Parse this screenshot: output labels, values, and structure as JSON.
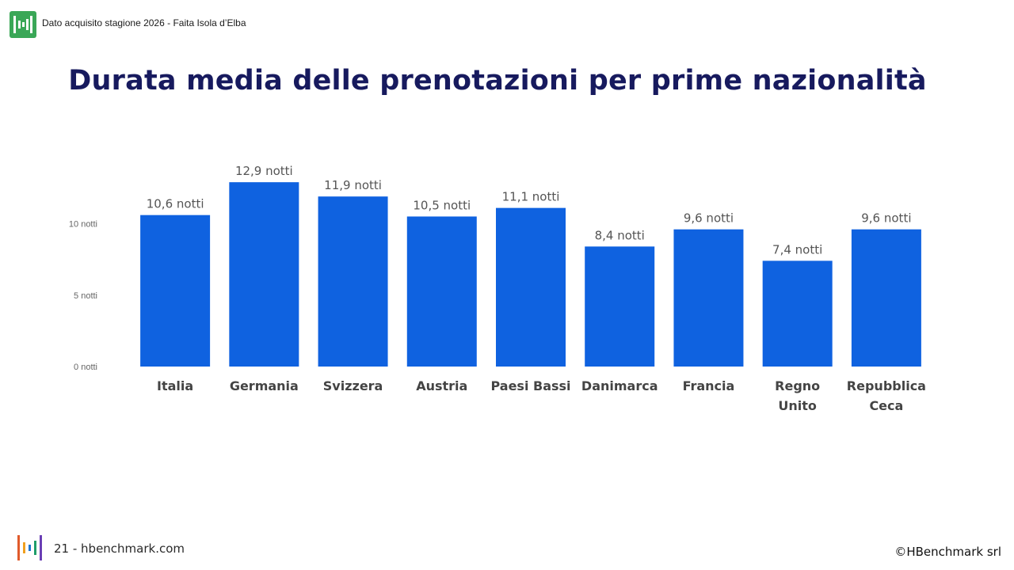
{
  "header": {
    "note": "Dato acquisito stagione 2026 - Faita Isola d’Elba"
  },
  "title": "Durata media delle prenotazioni per prime nazionalità",
  "colors": {
    "bar": "#0f62e0",
    "title": "#171a5e",
    "logo_top_bg": "#3aa757",
    "logo_bars": [
      "#e05a2b",
      "#f0a020",
      "#1f77d0",
      "#1f9e6a",
      "#6a3fb5"
    ]
  },
  "chart_data": {
    "type": "bar",
    "title": "",
    "xlabel": "",
    "ylabel": "",
    "categories": [
      "Italia",
      "Germania",
      "Svizzera",
      "Austria",
      "Paesi Bassi",
      "Danimarca",
      "Francia",
      "Regno Unito",
      "Repubblica Ceca"
    ],
    "category_lines": [
      [
        "Italia"
      ],
      [
        "Germania"
      ],
      [
        "Svizzera"
      ],
      [
        "Austria"
      ],
      [
        "Paesi Bassi"
      ],
      [
        "Danimarca"
      ],
      [
        "Francia"
      ],
      [
        "Regno",
        "Unito"
      ],
      [
        "Repubblica",
        "Ceca"
      ]
    ],
    "values": [
      10.6,
      12.9,
      11.9,
      10.5,
      11.1,
      8.4,
      9.6,
      7.4,
      9.6
    ],
    "value_labels": [
      "10,6 notti",
      "12,9 notti",
      "11,9 notti",
      "10,5 notti",
      "11,1 notti",
      "8,4 notti",
      "9,6 notti",
      "7,4 notti",
      "9,6 notti"
    ],
    "y_ticks": [
      0,
      5,
      10
    ],
    "y_tick_labels": [
      "0 notti",
      "5 notti",
      "10 notti"
    ],
    "ylim": [
      0,
      13
    ],
    "grid": false,
    "legend": "none"
  },
  "footer": {
    "page": "21 - hbenchmark.com",
    "copyright": "©HBenchmark srl"
  }
}
